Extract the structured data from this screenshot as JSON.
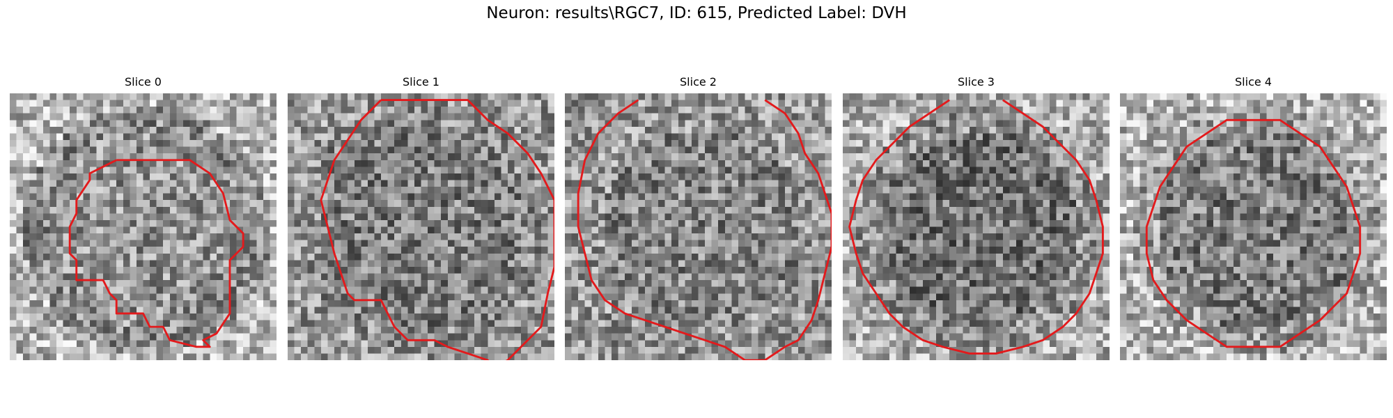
{
  "figure": {
    "suptitle": "Neuron: results\\RGC7, ID: 615, Predicted Label: DVH",
    "colormap": "gray",
    "contour_color": "#e31a1c"
  },
  "slices": [
    {
      "title": "Slice 0",
      "seed": 11,
      "brightness": [
        0.72,
        0.58,
        0.55
      ],
      "contour": [
        [
          16,
          10
        ],
        [
          27,
          10
        ],
        [
          30,
          12
        ],
        [
          32,
          15
        ],
        [
          33,
          19
        ],
        [
          35,
          21
        ],
        [
          35,
          23
        ],
        [
          33,
          25
        ],
        [
          33,
          33
        ],
        [
          31,
          36
        ],
        [
          29,
          37
        ],
        [
          30,
          38
        ],
        [
          28,
          38
        ],
        [
          24,
          37
        ],
        [
          23,
          35
        ],
        [
          21,
          35
        ],
        [
          20,
          33
        ],
        [
          16,
          33
        ],
        [
          16,
          31
        ],
        [
          15,
          30
        ],
        [
          14,
          28
        ],
        [
          10,
          28
        ],
        [
          10,
          25
        ],
        [
          9,
          24
        ],
        [
          9,
          20
        ],
        [
          10,
          18
        ],
        [
          10,
          16
        ],
        [
          12,
          13
        ],
        [
          12,
          12
        ],
        [
          14,
          11
        ],
        [
          16,
          10
        ]
      ],
      "open": true
    },
    {
      "title": "Slice 1",
      "seed": 23,
      "brightness": [
        0.6,
        0.5,
        0.55
      ],
      "contour": [
        [
          14,
          1
        ],
        [
          27,
          1
        ],
        [
          30,
          4
        ],
        [
          33,
          6
        ],
        [
          36,
          9
        ],
        [
          38,
          12
        ],
        [
          40,
          16
        ],
        [
          40,
          20
        ],
        [
          40,
          26
        ],
        [
          39,
          30
        ],
        [
          38,
          35
        ],
        [
          36,
          37
        ],
        [
          33,
          40
        ],
        [
          31,
          41
        ],
        [
          30,
          40
        ],
        [
          27,
          39
        ],
        [
          24,
          38
        ],
        [
          22,
          37
        ],
        [
          18,
          37
        ],
        [
          16,
          35
        ],
        [
          15,
          33
        ],
        [
          14,
          31
        ],
        [
          10,
          31
        ],
        [
          9,
          30
        ],
        [
          8,
          27
        ],
        [
          7,
          24
        ],
        [
          6,
          20
        ],
        [
          5,
          16
        ],
        [
          6,
          13
        ],
        [
          7,
          10
        ],
        [
          9,
          7
        ],
        [
          11,
          4
        ],
        [
          14,
          1
        ]
      ],
      "open": true
    },
    {
      "title": "Slice 2",
      "seed": 37,
      "brightness": [
        0.6,
        0.52,
        0.6
      ],
      "contour": [
        [
          30,
          1
        ],
        [
          33,
          3
        ],
        [
          35,
          6
        ],
        [
          36,
          9
        ],
        [
          38,
          12
        ],
        [
          39,
          15
        ],
        [
          40,
          18
        ],
        [
          40,
          23
        ],
        [
          39,
          27
        ],
        [
          38,
          31
        ],
        [
          37,
          34
        ],
        [
          35,
          37
        ],
        [
          33,
          38
        ],
        [
          30,
          40
        ],
        [
          27,
          40
        ],
        [
          24,
          38
        ],
        [
          21,
          37
        ],
        [
          18,
          36
        ],
        [
          15,
          35
        ],
        [
          12,
          34
        ],
        [
          9,
          33
        ],
        [
          6,
          31
        ],
        [
          4,
          28
        ],
        [
          3,
          24
        ],
        [
          2,
          20
        ],
        [
          2,
          15
        ],
        [
          3,
          10
        ],
        [
          5,
          6
        ],
        [
          8,
          3
        ],
        [
          11,
          1
        ]
      ],
      "open": true
    },
    {
      "title": "Slice 3",
      "seed": 53,
      "brightness": [
        0.68,
        0.45,
        0.58
      ],
      "contour": [
        [
          24,
          1
        ],
        [
          27,
          3
        ],
        [
          30,
          5
        ],
        [
          33,
          8
        ],
        [
          35,
          10
        ],
        [
          37,
          13
        ],
        [
          38,
          16
        ],
        [
          39,
          20
        ],
        [
          39,
          24
        ],
        [
          38,
          27
        ],
        [
          37,
          30
        ],
        [
          35,
          33
        ],
        [
          33,
          35
        ],
        [
          30,
          37
        ],
        [
          27,
          38
        ],
        [
          23,
          39
        ],
        [
          19,
          39
        ],
        [
          15,
          38
        ],
        [
          12,
          37
        ],
        [
          9,
          35
        ],
        [
          7,
          33
        ],
        [
          5,
          30
        ],
        [
          3,
          27
        ],
        [
          2,
          24
        ],
        [
          1,
          20
        ],
        [
          2,
          16
        ],
        [
          3,
          13
        ],
        [
          5,
          10
        ],
        [
          7,
          8
        ],
        [
          10,
          5
        ],
        [
          13,
          3
        ],
        [
          16,
          1
        ]
      ],
      "open": true
    },
    {
      "title": "Slice 4",
      "seed": 71,
      "brightness": [
        0.72,
        0.5,
        0.62
      ],
      "contour": [
        [
          16,
          4
        ],
        [
          24,
          4
        ],
        [
          27,
          6
        ],
        [
          30,
          8
        ],
        [
          32,
          11
        ],
        [
          34,
          14
        ],
        [
          35,
          17
        ],
        [
          36,
          20
        ],
        [
          36,
          24
        ],
        [
          35,
          27
        ],
        [
          34,
          30
        ],
        [
          32,
          32
        ],
        [
          30,
          34
        ],
        [
          27,
          36
        ],
        [
          24,
          38
        ],
        [
          16,
          38
        ],
        [
          13,
          36
        ],
        [
          10,
          34
        ],
        [
          7,
          31
        ],
        [
          5,
          28
        ],
        [
          4,
          24
        ],
        [
          4,
          20
        ],
        [
          5,
          17
        ],
        [
          6,
          14
        ],
        [
          8,
          11
        ],
        [
          10,
          8
        ],
        [
          13,
          6
        ],
        [
          16,
          4
        ]
      ],
      "open": false
    }
  ]
}
